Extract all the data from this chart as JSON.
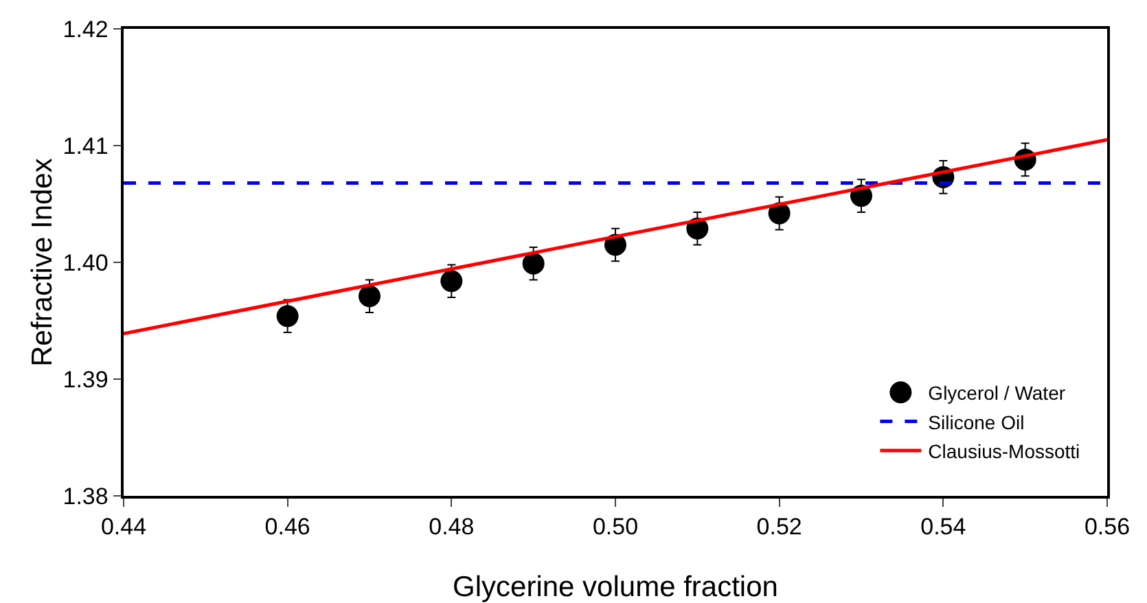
{
  "chart_data": {
    "type": "scatter",
    "xlabel": "Glycerine volume fraction",
    "ylabel": "Refractive Index",
    "xlim": [
      0.44,
      0.56
    ],
    "xticks": [
      {
        "value": 0.44,
        "label": "0.44"
      },
      {
        "value": 0.46,
        "label": "0.46"
      },
      {
        "value": 0.48,
        "label": "0.48"
      },
      {
        "value": 0.5,
        "label": "0.50"
      },
      {
        "value": 0.52,
        "label": "0.52"
      },
      {
        "value": 0.54,
        "label": "0.54"
      },
      {
        "value": 0.56,
        "label": "0.56"
      }
    ],
    "ylim": [
      1.38,
      1.42
    ],
    "yticks": [
      {
        "value": 1.38,
        "label": "1.38"
      },
      {
        "value": 1.39,
        "label": "1.39"
      },
      {
        "value": 1.4,
        "label": "1.40"
      },
      {
        "value": 1.41,
        "label": "1.41"
      },
      {
        "value": 1.42,
        "label": "1.42"
      }
    ],
    "grid": false,
    "legend": "bottom right",
    "series": [
      {
        "name": "Glycerol / Water",
        "marker": "circle",
        "color": "#000000",
        "x": [
          0.46,
          0.47,
          0.48,
          0.49,
          0.5,
          0.51,
          0.52,
          0.53,
          0.54,
          0.55
        ],
        "values": [
          1.3954,
          1.3971,
          1.3984,
          1.3999,
          1.4015,
          1.4029,
          1.4042,
          1.4057,
          1.4073,
          1.4088
        ],
        "errors": [
          0.0014,
          0.0014,
          0.0014,
          0.0014,
          0.0014,
          0.0014,
          0.0014,
          0.0014,
          0.0014,
          0.0014
        ]
      },
      {
        "name": "Silicone Oil",
        "type": "line",
        "line_style": "dashed",
        "color": "#0000ff",
        "x": [
          0.44,
          0.56
        ],
        "values": [
          1.4068,
          1.4068
        ]
      },
      {
        "name": "Clausius-Mossotti",
        "type": "line",
        "line_style": "solid",
        "color": "#ff0000",
        "x": [
          0.44,
          0.56
        ],
        "values": [
          1.3939,
          1.4105
        ]
      }
    ]
  }
}
